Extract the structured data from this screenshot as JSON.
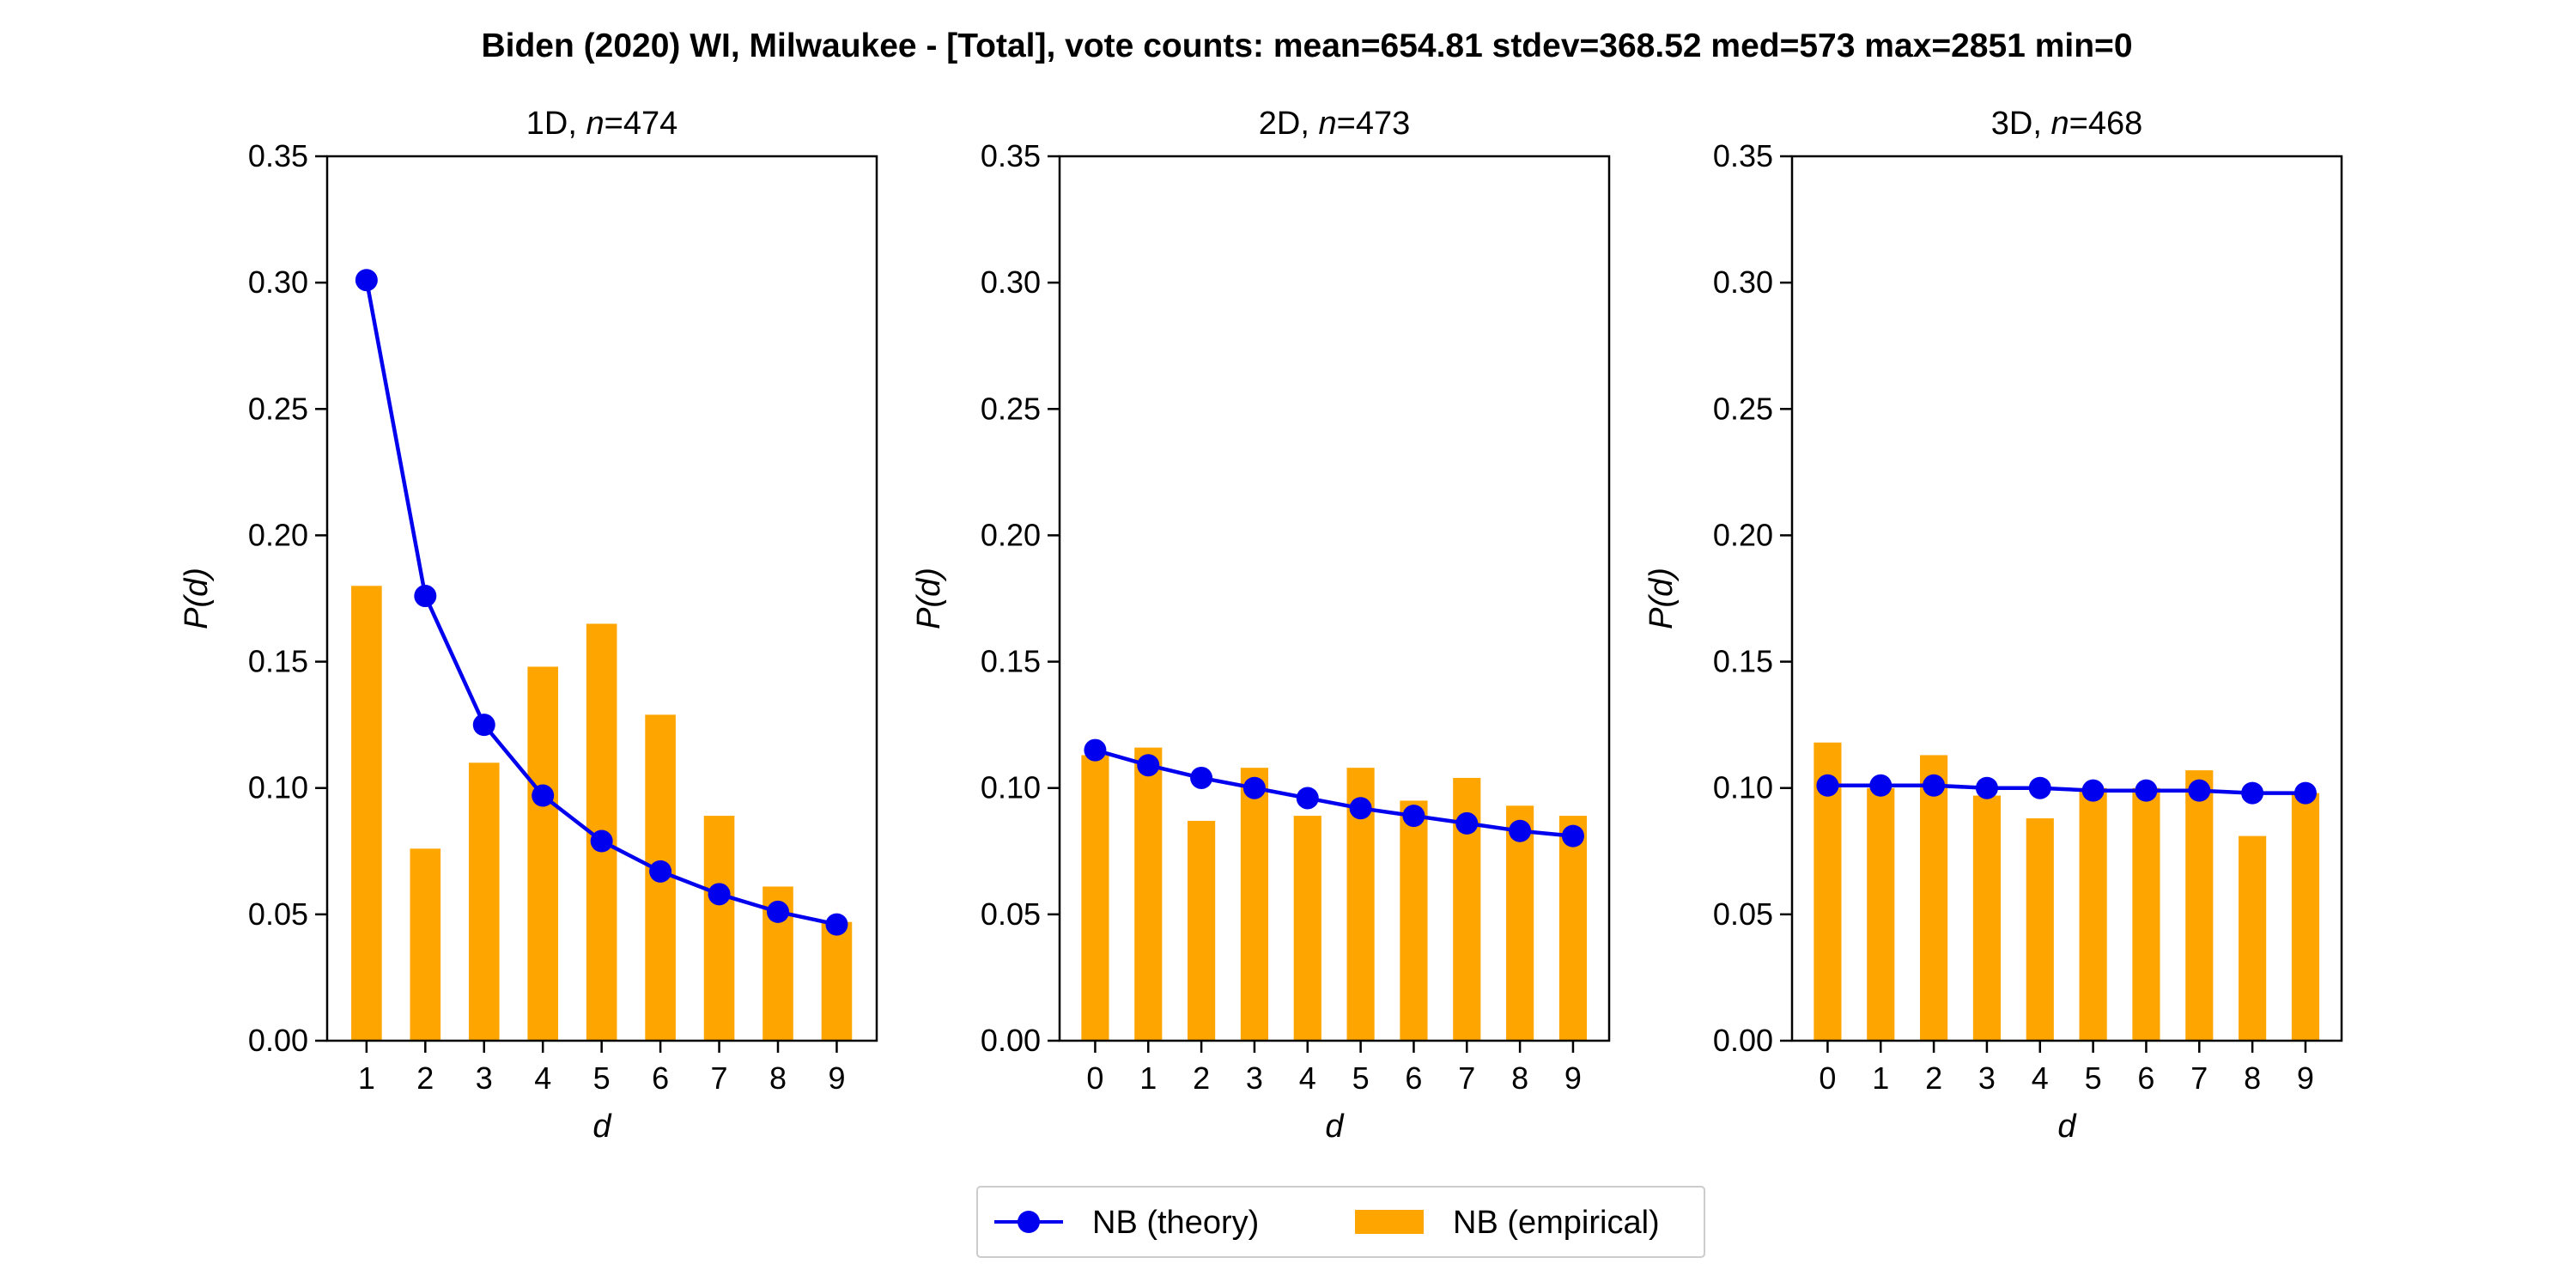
{
  "figure": {
    "suptitle": "Biden (2020) WI, Milwaukee - [Total], vote counts: mean=654.81 stdev=368.52 med=573 max=2851 min=0"
  },
  "colors": {
    "theory": "#0000ee",
    "empirical": "#ffa500",
    "axes": "#000000"
  },
  "legend": {
    "placement": "bottom-center",
    "theory_label": "NB (theory)",
    "empirical_label": "NB (empirical)"
  },
  "chart_data": [
    {
      "type": "bar",
      "title_prefix": "1D, ",
      "title_n_label": "n",
      "title_n_value": "=474",
      "xlabel": "d",
      "ylabel": "P(d)",
      "ylim": [
        0,
        0.35
      ],
      "yticks": [
        "0.00",
        "0.05",
        "0.10",
        "0.15",
        "0.20",
        "0.25",
        "0.30",
        "0.35"
      ],
      "categories": [
        "1",
        "2",
        "3",
        "4",
        "5",
        "6",
        "7",
        "8",
        "9"
      ],
      "series": [
        {
          "name": "NB (empirical)",
          "kind": "bar",
          "values": [
            0.18,
            0.076,
            0.11,
            0.148,
            0.165,
            0.129,
            0.089,
            0.061,
            0.047
          ]
        },
        {
          "name": "NB (theory)",
          "kind": "line",
          "values": [
            0.301,
            0.176,
            0.125,
            0.097,
            0.079,
            0.067,
            0.058,
            0.051,
            0.046
          ]
        }
      ]
    },
    {
      "type": "bar",
      "title_prefix": "2D, ",
      "title_n_label": "n",
      "title_n_value": "=473",
      "xlabel": "d",
      "ylabel": "P(d)",
      "ylim": [
        0,
        0.35
      ],
      "yticks": [
        "0.00",
        "0.05",
        "0.10",
        "0.15",
        "0.20",
        "0.25",
        "0.30",
        "0.35"
      ],
      "categories": [
        "0",
        "1",
        "2",
        "3",
        "4",
        "5",
        "6",
        "7",
        "8",
        "9"
      ],
      "series": [
        {
          "name": "NB (empirical)",
          "kind": "bar",
          "values": [
            0.113,
            0.116,
            0.087,
            0.108,
            0.089,
            0.108,
            0.095,
            0.104,
            0.093,
            0.089
          ]
        },
        {
          "name": "NB (theory)",
          "kind": "line",
          "values": [
            0.115,
            0.109,
            0.104,
            0.1,
            0.096,
            0.092,
            0.089,
            0.086,
            0.083,
            0.081
          ]
        }
      ]
    },
    {
      "type": "bar",
      "title_prefix": "3D, ",
      "title_n_label": "n",
      "title_n_value": "=468",
      "xlabel": "d",
      "ylabel": "P(d)",
      "ylim": [
        0,
        0.35
      ],
      "yticks": [
        "0.00",
        "0.05",
        "0.10",
        "0.15",
        "0.20",
        "0.25",
        "0.30",
        "0.35"
      ],
      "categories": [
        "0",
        "1",
        "2",
        "3",
        "4",
        "5",
        "6",
        "7",
        "8",
        "9"
      ],
      "series": [
        {
          "name": "NB (empirical)",
          "kind": "bar",
          "values": [
            0.118,
            0.1,
            0.113,
            0.097,
            0.088,
            0.1,
            0.1,
            0.107,
            0.081,
            0.098
          ]
        },
        {
          "name": "NB (theory)",
          "kind": "line",
          "values": [
            0.101,
            0.101,
            0.101,
            0.1,
            0.1,
            0.099,
            0.099,
            0.099,
            0.098,
            0.098
          ]
        }
      ]
    }
  ]
}
